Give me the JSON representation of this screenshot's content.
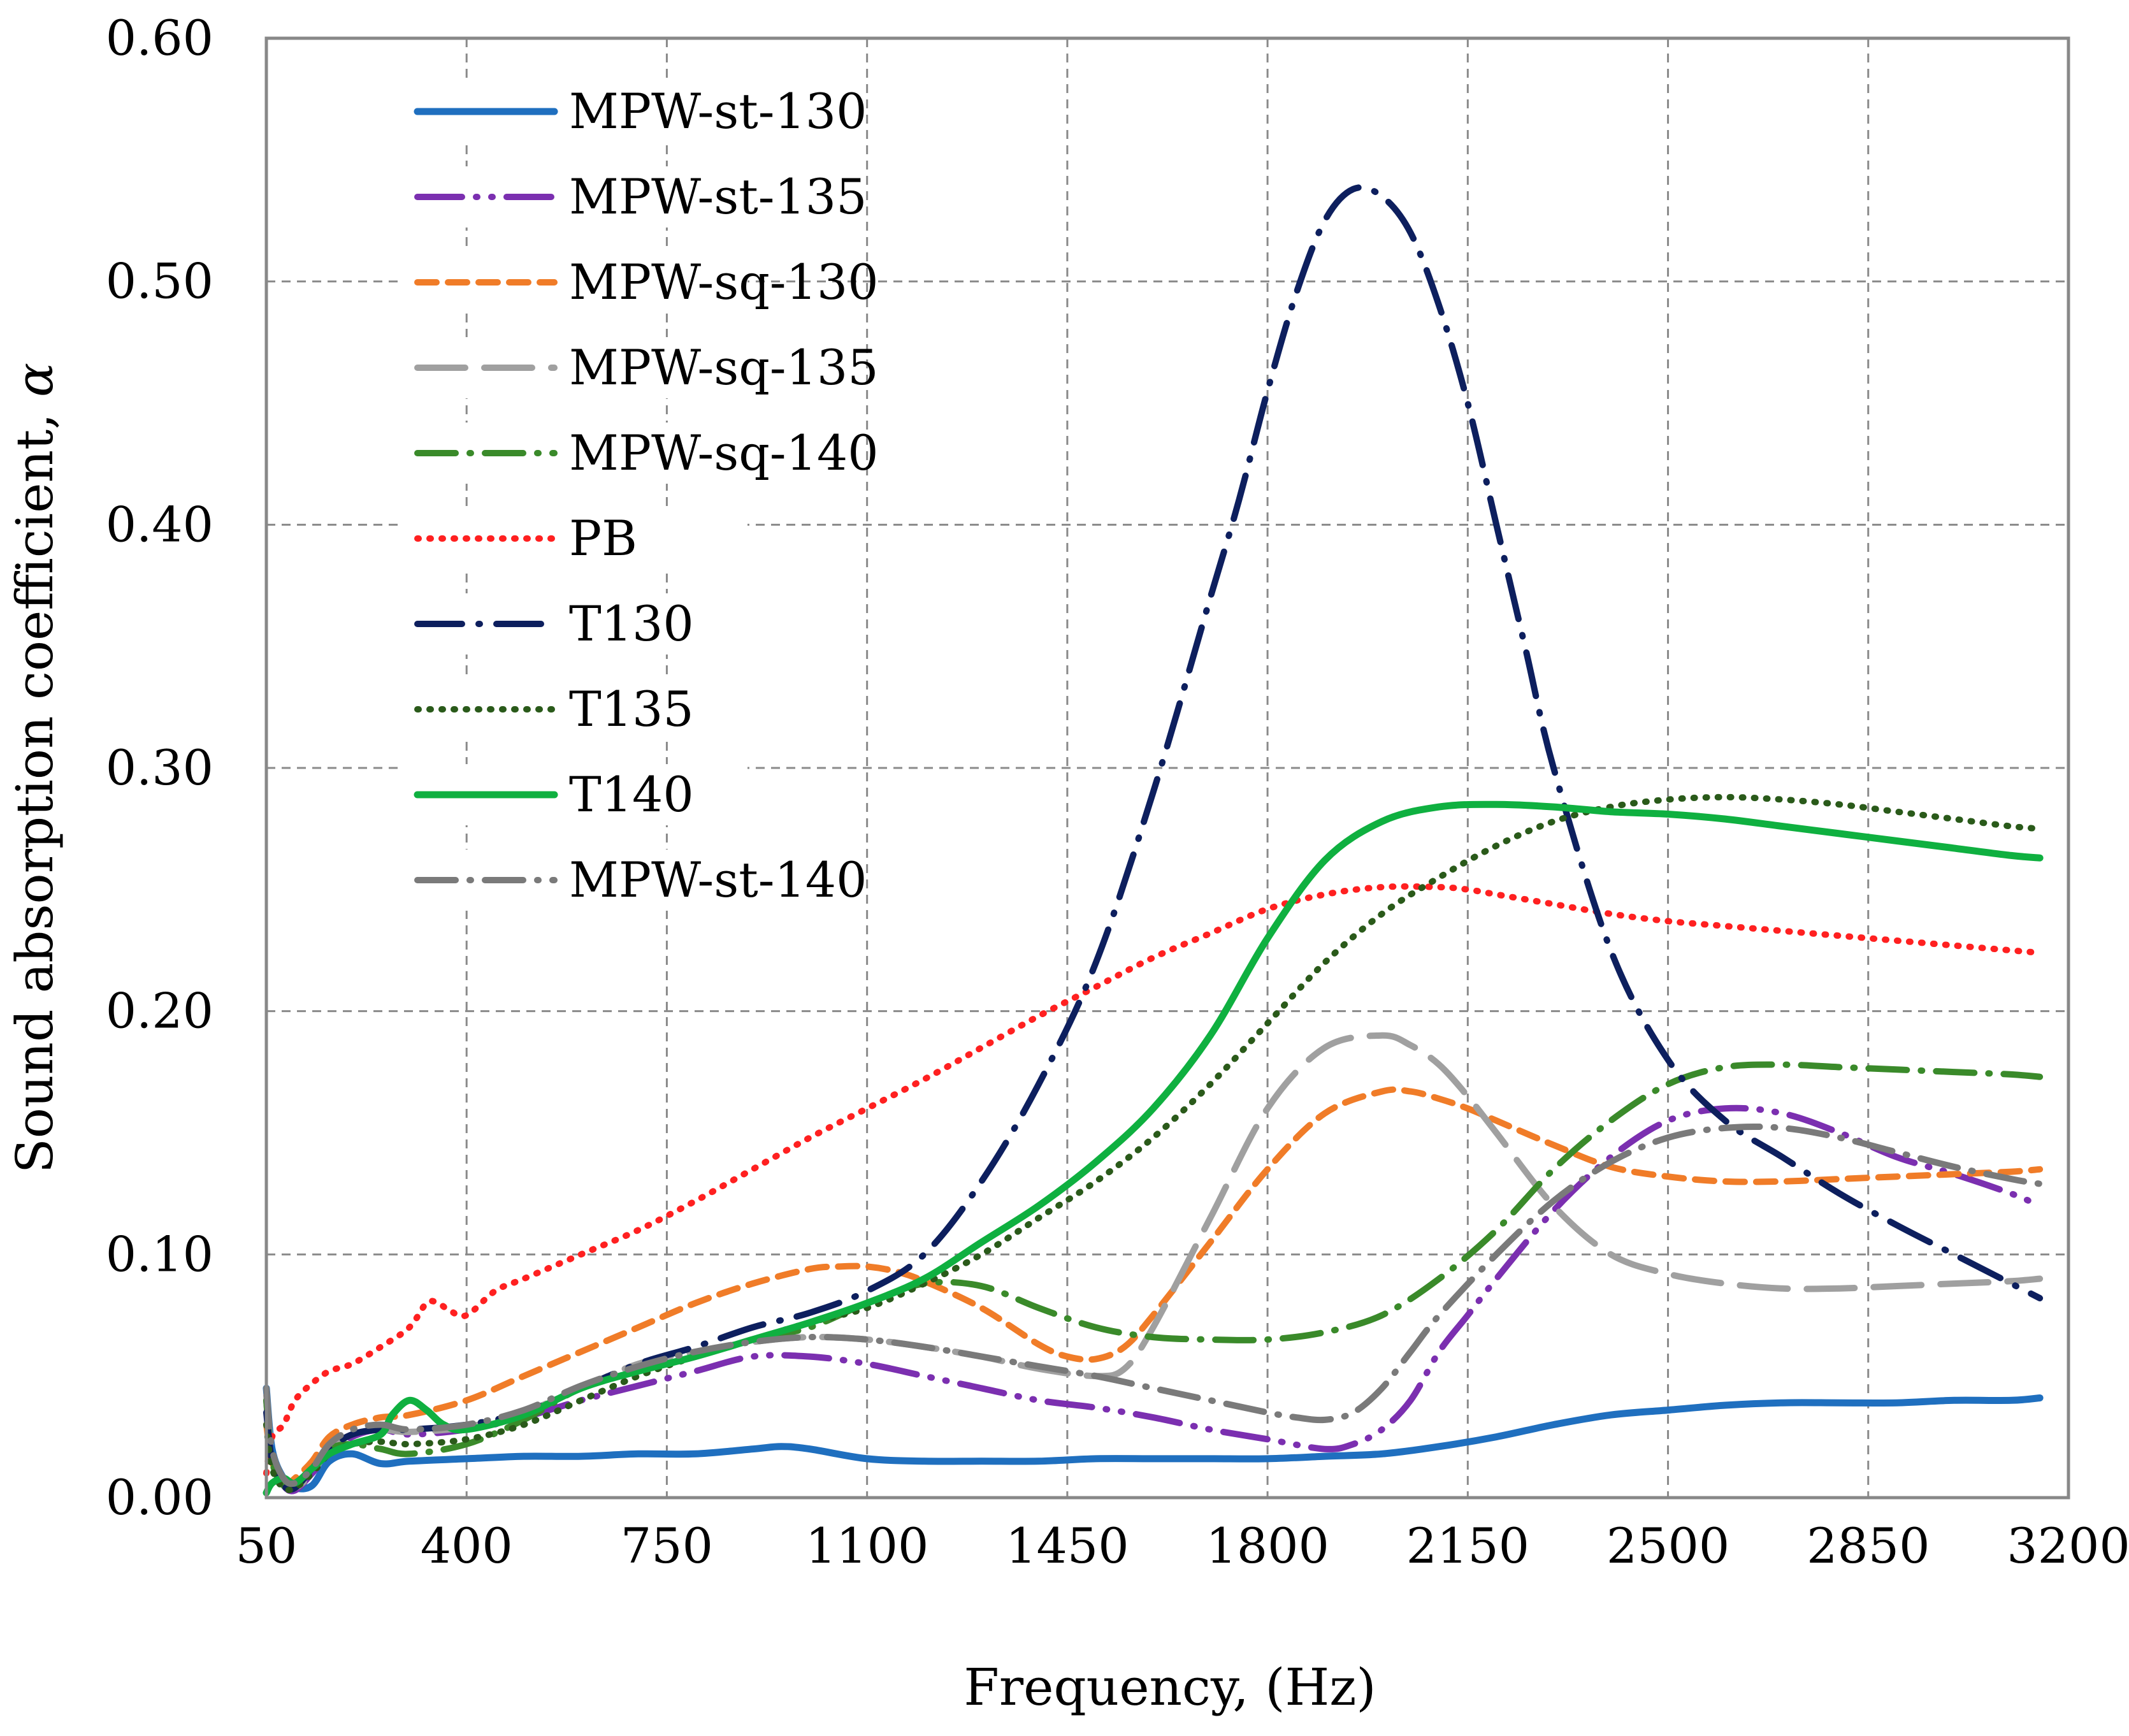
{
  "chart_data": {
    "type": "line",
    "xlabel": "Frequency, (Hz)",
    "ylabel": "Sound absorption coefficient, ",
    "ylabel_symbol": "α",
    "xlim": [
      50,
      3200
    ],
    "ylim": [
      0,
      0.6
    ],
    "xticks": [
      50,
      400,
      750,
      1100,
      1450,
      1800,
      2150,
      2500,
      2850,
      3200
    ],
    "xtick_labels": [
      "50",
      "400",
      "750",
      "1100",
      "1450",
      "1800",
      "2150",
      "2500",
      "2850",
      "3200"
    ],
    "yticks": [
      0,
      0.1,
      0.2,
      0.3,
      0.4,
      0.5,
      0.6
    ],
    "ytick_labels": [
      "0.00",
      "0.10",
      "0.20",
      "0.30",
      "0.40",
      "0.50",
      "0.60"
    ],
    "grid": true,
    "legend_position": "top-left",
    "series": [
      {
        "name": "MPW-st-130",
        "color": "#1f6fbf",
        "style": "solid",
        "x": [
          50,
          60,
          80,
          100,
          130,
          160,
          200,
          250,
          300,
          400,
          500,
          600,
          700,
          800,
          900,
          950,
          1000,
          1100,
          1200,
          1300,
          1400,
          1500,
          1600,
          1700,
          1800,
          1900,
          2000,
          2100,
          2200,
          2300,
          2400,
          2500,
          2600,
          2700,
          2800,
          2900,
          3000,
          3100,
          3150
        ],
        "y": [
          0.045,
          0.02,
          0.008,
          0.004,
          0.005,
          0.015,
          0.018,
          0.014,
          0.015,
          0.016,
          0.017,
          0.017,
          0.018,
          0.018,
          0.02,
          0.021,
          0.02,
          0.016,
          0.015,
          0.015,
          0.015,
          0.016,
          0.016,
          0.016,
          0.016,
          0.017,
          0.018,
          0.021,
          0.025,
          0.03,
          0.034,
          0.036,
          0.038,
          0.039,
          0.039,
          0.039,
          0.04,
          0.04,
          0.041
        ]
      },
      {
        "name": "MPW-st-135",
        "color": "#7b2fb0",
        "style": "dash-dot-dot",
        "x": [
          50,
          60,
          80,
          100,
          130,
          160,
          200,
          250,
          300,
          400,
          500,
          600,
          700,
          800,
          900,
          1000,
          1100,
          1200,
          1300,
          1400,
          1500,
          1600,
          1700,
          1800,
          1900,
          1950,
          2000,
          2050,
          2100,
          2150,
          2200,
          2300,
          2400,
          2500,
          2600,
          2700,
          2800,
          2900,
          3000,
          3100,
          3150
        ],
        "y": [
          0.04,
          0.015,
          0.005,
          0.003,
          0.01,
          0.018,
          0.025,
          0.028,
          0.026,
          0.028,
          0.033,
          0.04,
          0.046,
          0.052,
          0.058,
          0.058,
          0.055,
          0.05,
          0.045,
          0.04,
          0.037,
          0.033,
          0.028,
          0.024,
          0.02,
          0.022,
          0.028,
          0.04,
          0.06,
          0.075,
          0.09,
          0.118,
          0.14,
          0.155,
          0.16,
          0.158,
          0.15,
          0.14,
          0.133,
          0.125,
          0.12
        ]
      },
      {
        "name": "MPW-sq-130",
        "color": "#f07c28",
        "style": "dashed",
        "x": [
          50,
          60,
          80,
          100,
          130,
          160,
          200,
          250,
          300,
          400,
          500,
          600,
          700,
          800,
          900,
          1000,
          1050,
          1100,
          1150,
          1200,
          1300,
          1400,
          1450,
          1500,
          1550,
          1600,
          1700,
          1800,
          1900,
          2000,
          2050,
          2100,
          2150,
          2200,
          2300,
          2400,
          2500,
          2600,
          2700,
          2800,
          2900,
          3000,
          3100,
          3150
        ],
        "y": [
          0.03,
          0.015,
          0.005,
          0.008,
          0.015,
          0.025,
          0.03,
          0.033,
          0.034,
          0.04,
          0.05,
          0.06,
          0.07,
          0.08,
          0.088,
          0.094,
          0.095,
          0.095,
          0.093,
          0.089,
          0.078,
          0.063,
          0.058,
          0.057,
          0.062,
          0.075,
          0.105,
          0.135,
          0.158,
          0.167,
          0.167,
          0.164,
          0.16,
          0.155,
          0.145,
          0.136,
          0.132,
          0.13,
          0.13,
          0.131,
          0.132,
          0.133,
          0.134,
          0.135
        ]
      },
      {
        "name": "MPW-sq-135",
        "color": "#a0a0a0",
        "style": "long-dash",
        "x": [
          50,
          60,
          80,
          100,
          130,
          160,
          200,
          250,
          300,
          400,
          500,
          600,
          700,
          800,
          900,
          1000,
          1100,
          1200,
          1300,
          1400,
          1500,
          1550,
          1600,
          1700,
          1800,
          1900,
          2000,
          2050,
          2100,
          2150,
          2200,
          2300,
          2400,
          2500,
          2600,
          2700,
          2800,
          2900,
          3000,
          3100,
          3150
        ],
        "y": [
          0.042,
          0.018,
          0.006,
          0.004,
          0.01,
          0.02,
          0.026,
          0.028,
          0.027,
          0.029,
          0.035,
          0.045,
          0.055,
          0.06,
          0.064,
          0.066,
          0.065,
          0.062,
          0.058,
          0.053,
          0.05,
          0.053,
          0.07,
          0.115,
          0.16,
          0.185,
          0.19,
          0.186,
          0.178,
          0.165,
          0.15,
          0.12,
          0.1,
          0.092,
          0.088,
          0.086,
          0.086,
          0.087,
          0.088,
          0.089,
          0.09
        ]
      },
      {
        "name": "MPW-sq-140",
        "color": "#3a8a2a",
        "style": "dash-dot",
        "x": [
          50,
          60,
          80,
          100,
          130,
          160,
          200,
          250,
          300,
          400,
          500,
          600,
          700,
          800,
          900,
          1000,
          1100,
          1200,
          1300,
          1400,
          1500,
          1600,
          1700,
          1800,
          1900,
          2000,
          2100,
          2200,
          2300,
          2400,
          2500,
          2600,
          2700,
          2800,
          2900,
          3000,
          3100,
          3150
        ],
        "y": [
          0.04,
          0.015,
          0.005,
          0.004,
          0.012,
          0.02,
          0.022,
          0.02,
          0.018,
          0.022,
          0.032,
          0.045,
          0.052,
          0.058,
          0.065,
          0.07,
          0.08,
          0.088,
          0.087,
          0.078,
          0.07,
          0.066,
          0.065,
          0.065,
          0.068,
          0.075,
          0.09,
          0.11,
          0.135,
          0.155,
          0.17,
          0.177,
          0.178,
          0.177,
          0.176,
          0.175,
          0.174,
          0.173
        ]
      },
      {
        "name": "PB",
        "color": "#ff2020",
        "style": "dotted",
        "x": [
          50,
          60,
          80,
          100,
          130,
          160,
          200,
          250,
          300,
          330,
          350,
          370,
          400,
          450,
          500,
          600,
          700,
          800,
          900,
          1000,
          1100,
          1200,
          1300,
          1400,
          1500,
          1600,
          1700,
          1800,
          1900,
          2000,
          2100,
          2150,
          2200,
          2300,
          2400,
          2500,
          2600,
          2700,
          2800,
          2900,
          3000,
          3100,
          3150
        ],
        "y": [
          0.01,
          0.025,
          0.03,
          0.04,
          0.047,
          0.052,
          0.055,
          0.062,
          0.07,
          0.08,
          0.08,
          0.077,
          0.075,
          0.085,
          0.09,
          0.1,
          0.11,
          0.122,
          0.135,
          0.148,
          0.16,
          0.172,
          0.185,
          0.198,
          0.21,
          0.222,
          0.232,
          0.242,
          0.248,
          0.251,
          0.251,
          0.25,
          0.248,
          0.244,
          0.24,
          0.237,
          0.235,
          0.233,
          0.231,
          0.229,
          0.227,
          0.225,
          0.224
        ]
      },
      {
        "name": "T130",
        "color": "#0d1f5e",
        "style": "long-dash-dot",
        "x": [
          50,
          60,
          80,
          100,
          130,
          160,
          200,
          250,
          300,
          400,
          500,
          600,
          700,
          800,
          900,
          1000,
          1100,
          1200,
          1300,
          1400,
          1500,
          1600,
          1700,
          1750,
          1800,
          1850,
          1900,
          1950,
          2000,
          2050,
          2100,
          2150,
          2200,
          2250,
          2300,
          2400,
          2500,
          2600,
          2700,
          2800,
          2900,
          3000,
          3100,
          3150
        ],
        "y": [
          0.035,
          0.015,
          0.005,
          0.004,
          0.012,
          0.02,
          0.026,
          0.028,
          0.028,
          0.03,
          0.035,
          0.045,
          0.055,
          0.062,
          0.07,
          0.076,
          0.085,
          0.1,
          0.13,
          0.17,
          0.22,
          0.29,
          0.37,
          0.41,
          0.455,
          0.495,
          0.525,
          0.538,
          0.535,
          0.52,
          0.49,
          0.45,
          0.4,
          0.35,
          0.3,
          0.225,
          0.18,
          0.155,
          0.14,
          0.125,
          0.112,
          0.1,
          0.088,
          0.082
        ]
      },
      {
        "name": "T135",
        "color": "#2a5a1a",
        "style": "dotted",
        "x": [
          50,
          60,
          80,
          100,
          130,
          160,
          200,
          250,
          300,
          400,
          500,
          600,
          700,
          800,
          900,
          1000,
          1100,
          1200,
          1300,
          1400,
          1500,
          1600,
          1700,
          1800,
          1900,
          2000,
          2100,
          2200,
          2300,
          2400,
          2500,
          2600,
          2700,
          2800,
          2900,
          3000,
          3100,
          3150
        ],
        "y": [
          0.03,
          0.012,
          0.004,
          0.004,
          0.01,
          0.018,
          0.022,
          0.023,
          0.022,
          0.024,
          0.03,
          0.04,
          0.05,
          0.058,
          0.065,
          0.072,
          0.078,
          0.088,
          0.1,
          0.115,
          0.13,
          0.148,
          0.17,
          0.195,
          0.22,
          0.24,
          0.255,
          0.268,
          0.278,
          0.284,
          0.287,
          0.288,
          0.287,
          0.285,
          0.282,
          0.279,
          0.276,
          0.275
        ]
      },
      {
        "name": "T140",
        "color": "#0fb040",
        "style": "solid",
        "x": [
          50,
          60,
          80,
          100,
          130,
          160,
          200,
          250,
          270,
          300,
          330,
          360,
          400,
          500,
          600,
          700,
          800,
          900,
          1000,
          1100,
          1200,
          1300,
          1400,
          1500,
          1600,
          1700,
          1800,
          1900,
          2000,
          2100,
          2200,
          2300,
          2400,
          2500,
          2600,
          2700,
          2800,
          2900,
          3000,
          3100,
          3150
        ],
        "y": [
          0.002,
          0.006,
          0.008,
          0.006,
          0.012,
          0.018,
          0.022,
          0.026,
          0.034,
          0.04,
          0.036,
          0.03,
          0.028,
          0.034,
          0.045,
          0.052,
          0.058,
          0.065,
          0.072,
          0.08,
          0.09,
          0.105,
          0.12,
          0.138,
          0.16,
          0.19,
          0.23,
          0.262,
          0.278,
          0.284,
          0.285,
          0.284,
          0.282,
          0.281,
          0.279,
          0.276,
          0.273,
          0.27,
          0.267,
          0.264,
          0.263
        ]
      },
      {
        "name": "MPW-st-140",
        "color": "#7a7a7a",
        "style": "dash-dot",
        "x": [
          50,
          60,
          80,
          100,
          130,
          160,
          200,
          250,
          300,
          400,
          500,
          600,
          700,
          800,
          900,
          1000,
          1100,
          1200,
          1300,
          1400,
          1500,
          1600,
          1700,
          1800,
          1850,
          1900,
          1950,
          2000,
          2050,
          2100,
          2200,
          2300,
          2400,
          2500,
          2600,
          2700,
          2800,
          2900,
          3000,
          3100,
          3150
        ],
        "y": [
          0.045,
          0.02,
          0.008,
          0.006,
          0.012,
          0.022,
          0.028,
          0.03,
          0.028,
          0.03,
          0.036,
          0.046,
          0.054,
          0.06,
          0.064,
          0.066,
          0.065,
          0.062,
          0.058,
          0.054,
          0.05,
          0.045,
          0.04,
          0.035,
          0.033,
          0.032,
          0.035,
          0.045,
          0.06,
          0.075,
          0.1,
          0.122,
          0.138,
          0.148,
          0.152,
          0.152,
          0.148,
          0.142,
          0.136,
          0.131,
          0.129
        ]
      }
    ]
  }
}
